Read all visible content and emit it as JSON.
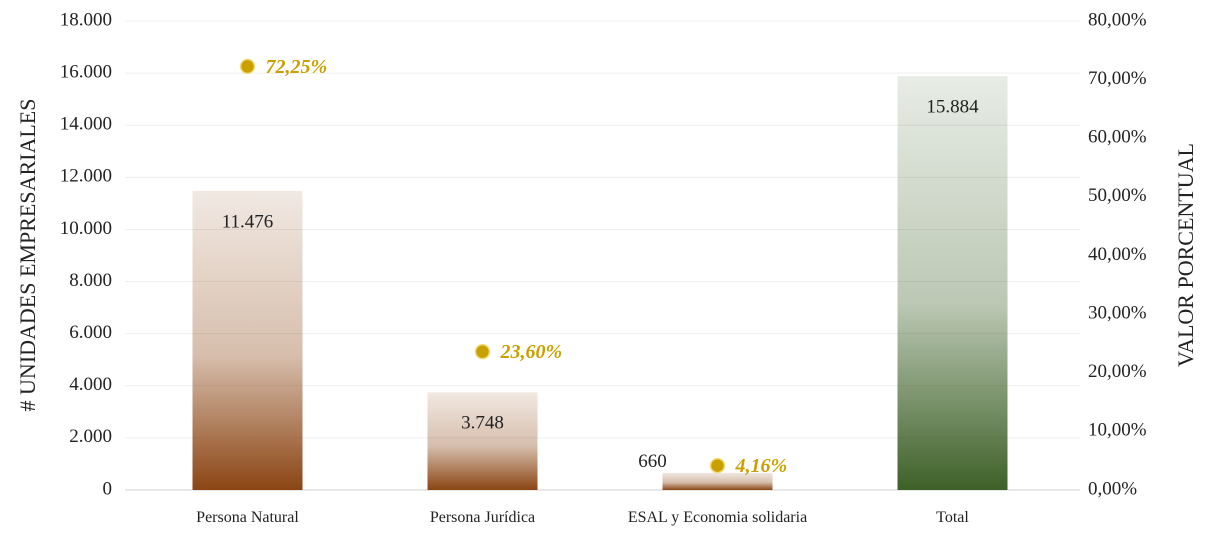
{
  "chart_data": {
    "type": "bar",
    "categories": [
      "Persona Natural",
      "Persona Jurídica",
      "ESAL y Economia solidaria",
      "Total"
    ],
    "series": [
      {
        "type": "bar",
        "colors": [
          "#8b4513",
          "#8b4513",
          "#8b4513",
          "#3e6128"
        ],
        "values": [
          11476,
          3748,
          660,
          15884
        ],
        "value_labels": [
          "11.476",
          "3.748",
          "660",
          "15.884"
        ]
      },
      {
        "type": "scatter",
        "axis": "y2",
        "color": "#c9a000",
        "values": [
          72.25,
          23.6,
          4.16,
          null
        ],
        "value_labels": [
          "72,25%",
          "23,60%",
          "4,16%",
          null
        ]
      }
    ],
    "y_label": "# UNIDADES EMPRESARIALES",
    "y2_label": "VALOR PORCENTUAL",
    "ylim": [
      0,
      18000
    ],
    "yticks": [
      0,
      {
        "value": 2000,
        "label": "2.000"
      },
      {
        "value": 4000,
        "label": "4.000"
      },
      {
        "value": 6000,
        "label": "6.000"
      },
      {
        "value": 8000,
        "label": "8.000"
      },
      {
        "value": 10000,
        "label": "10.000"
      },
      {
        "value": 12000,
        "label": "12.000"
      },
      {
        "value": 14000,
        "label": "14.000"
      },
      {
        "value": 16000,
        "label": "16.000"
      },
      {
        "value": 18000,
        "label": "18.000"
      }
    ],
    "y2lim": [
      0,
      80
    ],
    "y2ticks": [
      {
        "value": 0,
        "label": "0,00%"
      },
      {
        "value": 10,
        "label": "10,00%"
      },
      {
        "value": 20,
        "label": "20,00%"
      },
      {
        "value": 30,
        "label": "30,00%"
      },
      {
        "value": 40,
        "label": "40,00%"
      },
      {
        "value": 50,
        "label": "50,00%"
      },
      {
        "value": 60,
        "label": "60,00%"
      },
      {
        "value": 70,
        "label": "70,00%"
      },
      {
        "value": 80,
        "label": "80,00%"
      }
    ],
    "grid": true
  }
}
